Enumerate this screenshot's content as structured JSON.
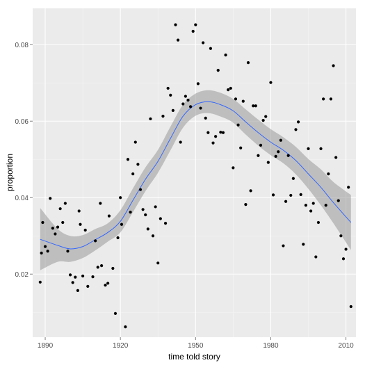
{
  "chart_data": {
    "type": "scatter",
    "xlabel": "time told story",
    "ylabel": "proportion",
    "xlim": [
      1885,
      2014
    ],
    "ylim": [
      0.0035,
      0.0895
    ],
    "x_ticks": [
      1890,
      1920,
      1950,
      1980,
      2010
    ],
    "x_tick_labels": [
      "1890",
      "1920",
      "1950",
      "1980",
      "2010"
    ],
    "y_ticks": [
      0.02,
      0.04,
      0.06,
      0.08
    ],
    "y_tick_labels": [
      "0.02",
      "0.04",
      "0.06",
      "0.08"
    ],
    "grid": true,
    "legend": "none",
    "colors": {
      "panel": "#ebebeb",
      "grid": "#ffffff",
      "points": "#000000",
      "smooth_line": "#3366ff",
      "confidence_band": "#999999"
    },
    "points": [
      [
        1888,
        0.0179
      ],
      [
        1888.5,
        0.0255
      ],
      [
        1889,
        0.0335
      ],
      [
        1890,
        0.0272
      ],
      [
        1891,
        0.026
      ],
      [
        1892,
        0.0398
      ],
      [
        1893,
        0.032
      ],
      [
        1894,
        0.0305
      ],
      [
        1895,
        0.0323
      ],
      [
        1896,
        0.0371
      ],
      [
        1897,
        0.0335
      ],
      [
        1898,
        0.0385
      ],
      [
        1899,
        0.026
      ],
      [
        1900,
        0.0198
      ],
      [
        1901,
        0.0178
      ],
      [
        1902,
        0.0192
      ],
      [
        1903,
        0.0157
      ],
      [
        1903.5,
        0.0365
      ],
      [
        1904,
        0.033
      ],
      [
        1905,
        0.0195
      ],
      [
        1906,
        0.0315
      ],
      [
        1907,
        0.0168
      ],
      [
        1909,
        0.0193
      ],
      [
        1910,
        0.0287
      ],
      [
        1911,
        0.0218
      ],
      [
        1912,
        0.0385
      ],
      [
        1912.5,
        0.0222
      ],
      [
        1914,
        0.0171
      ],
      [
        1915,
        0.0176
      ],
      [
        1915.5,
        0.0352
      ],
      [
        1917,
        0.0215
      ],
      [
        1918,
        0.0097
      ],
      [
        1919,
        0.0295
      ],
      [
        1920,
        0.04
      ],
      [
        1920.5,
        0.033
      ],
      [
        1922,
        0.0062
      ],
      [
        1923,
        0.05
      ],
      [
        1924,
        0.0362
      ],
      [
        1925,
        0.0462
      ],
      [
        1926,
        0.0545
      ],
      [
        1927,
        0.0487
      ],
      [
        1928,
        0.0421
      ],
      [
        1929,
        0.0369
      ],
      [
        1930,
        0.0355
      ],
      [
        1931,
        0.0318
      ],
      [
        1932,
        0.0606
      ],
      [
        1933,
        0.03
      ],
      [
        1934,
        0.0376
      ],
      [
        1935,
        0.0229
      ],
      [
        1936,
        0.0345
      ],
      [
        1937,
        0.0613
      ],
      [
        1938,
        0.0333
      ],
      [
        1939,
        0.0686
      ],
      [
        1940,
        0.0668
      ],
      [
        1941,
        0.0628
      ],
      [
        1942,
        0.0852
      ],
      [
        1943,
        0.0812
      ],
      [
        1944,
        0.0545
      ],
      [
        1945,
        0.0645
      ],
      [
        1946,
        0.0665
      ],
      [
        1947,
        0.0655
      ],
      [
        1948,
        0.0638
      ],
      [
        1949,
        0.0835
      ],
      [
        1950,
        0.0852
      ],
      [
        1951,
        0.0698
      ],
      [
        1952,
        0.0634
      ],
      [
        1953,
        0.0805
      ],
      [
        1954,
        0.0608
      ],
      [
        1955,
        0.057
      ],
      [
        1956,
        0.079
      ],
      [
        1957,
        0.0543
      ],
      [
        1958,
        0.056
      ],
      [
        1959,
        0.0733
      ],
      [
        1960,
        0.0571
      ],
      [
        1961,
        0.057
      ],
      [
        1962,
        0.0773
      ],
      [
        1963,
        0.0682
      ],
      [
        1964,
        0.0686
      ],
      [
        1965,
        0.0478
      ],
      [
        1966,
        0.0658
      ],
      [
        1967,
        0.059
      ],
      [
        1968,
        0.053
      ],
      [
        1969,
        0.0652
      ],
      [
        1970,
        0.0382
      ],
      [
        1971,
        0.0753
      ],
      [
        1972,
        0.0418
      ],
      [
        1973,
        0.064
      ],
      [
        1974,
        0.064
      ],
      [
        1975,
        0.051
      ],
      [
        1976,
        0.0537
      ],
      [
        1977,
        0.0602
      ],
      [
        1978,
        0.0612
      ],
      [
        1979,
        0.0492
      ],
      [
        1980,
        0.0701
      ],
      [
        1981,
        0.0407
      ],
      [
        1982,
        0.0508
      ],
      [
        1983,
        0.052
      ],
      [
        1984,
        0.055
      ],
      [
        1985,
        0.0274
      ],
      [
        1986,
        0.039
      ],
      [
        1987,
        0.051
      ],
      [
        1988,
        0.0406
      ],
      [
        1989,
        0.045
      ],
      [
        1990,
        0.0578
      ],
      [
        1991,
        0.0598
      ],
      [
        1992,
        0.0408
      ],
      [
        1993,
        0.0278
      ],
      [
        1994,
        0.038
      ],
      [
        1995,
        0.0528
      ],
      [
        1996,
        0.0365
      ],
      [
        1997,
        0.0385
      ],
      [
        1998,
        0.0245
      ],
      [
        1999,
        0.0335
      ],
      [
        2000,
        0.0528
      ],
      [
        2001,
        0.0658
      ],
      [
        2002,
        0.038
      ],
      [
        2003,
        0.0462
      ],
      [
        2004,
        0.0658
      ],
      [
        2005,
        0.0745
      ],
      [
        2006,
        0.0505
      ],
      [
        2007,
        0.0392
      ],
      [
        2008,
        0.03
      ],
      [
        2009,
        0.024
      ],
      [
        2010,
        0.0265
      ],
      [
        2011,
        0.0427
      ],
      [
        2012,
        0.0115
      ]
    ],
    "smooth_curve": [
      [
        1888,
        0.0291
      ],
      [
        1895,
        0.0275
      ],
      [
        1900,
        0.0266
      ],
      [
        1905,
        0.0272
      ],
      [
        1910,
        0.029
      ],
      [
        1915,
        0.0309
      ],
      [
        1920,
        0.0338
      ],
      [
        1925,
        0.0393
      ],
      [
        1930,
        0.0448
      ],
      [
        1935,
        0.0495
      ],
      [
        1940,
        0.0555
      ],
      [
        1945,
        0.0613
      ],
      [
        1950,
        0.0643
      ],
      [
        1955,
        0.0651
      ],
      [
        1960,
        0.0643
      ],
      [
        1965,
        0.0627
      ],
      [
        1970,
        0.0598
      ],
      [
        1975,
        0.057
      ],
      [
        1980,
        0.0545
      ],
      [
        1985,
        0.0524
      ],
      [
        1990,
        0.0497
      ],
      [
        1995,
        0.0462
      ],
      [
        2000,
        0.0427
      ],
      [
        2005,
        0.0387
      ],
      [
        2012,
        0.0335
      ]
    ],
    "confidence_band": {
      "upper": [
        [
          1888,
          0.0373
        ],
        [
          1895,
          0.0318
        ],
        [
          1900,
          0.03
        ],
        [
          1905,
          0.0302
        ],
        [
          1910,
          0.0318
        ],
        [
          1915,
          0.0333
        ],
        [
          1920,
          0.0367
        ],
        [
          1925,
          0.0424
        ],
        [
          1930,
          0.0479
        ],
        [
          1935,
          0.0525
        ],
        [
          1940,
          0.0586
        ],
        [
          1945,
          0.0643
        ],
        [
          1950,
          0.0672
        ],
        [
          1955,
          0.0681
        ],
        [
          1960,
          0.0674
        ],
        [
          1965,
          0.0658
        ],
        [
          1970,
          0.0631
        ],
        [
          1975,
          0.0604
        ],
        [
          1980,
          0.0579
        ],
        [
          1985,
          0.0558
        ],
        [
          1990,
          0.0533
        ],
        [
          1995,
          0.0501
        ],
        [
          2000,
          0.0474
        ],
        [
          2005,
          0.0441
        ],
        [
          2012,
          0.0407
        ]
      ],
      "lower": [
        [
          1888,
          0.021
        ],
        [
          1895,
          0.0232
        ],
        [
          1900,
          0.0232
        ],
        [
          1905,
          0.0242
        ],
        [
          1910,
          0.0262
        ],
        [
          1915,
          0.0285
        ],
        [
          1920,
          0.0309
        ],
        [
          1925,
          0.0362
        ],
        [
          1930,
          0.0417
        ],
        [
          1935,
          0.0465
        ],
        [
          1940,
          0.0524
        ],
        [
          1945,
          0.0583
        ],
        [
          1950,
          0.0614
        ],
        [
          1955,
          0.0621
        ],
        [
          1960,
          0.0612
        ],
        [
          1965,
          0.0596
        ],
        [
          1970,
          0.0565
        ],
        [
          1975,
          0.0536
        ],
        [
          1980,
          0.0511
        ],
        [
          1985,
          0.049
        ],
        [
          1990,
          0.0461
        ],
        [
          1995,
          0.0423
        ],
        [
          2000,
          0.038
        ],
        [
          2005,
          0.0333
        ],
        [
          2012,
          0.0263
        ]
      ]
    }
  }
}
